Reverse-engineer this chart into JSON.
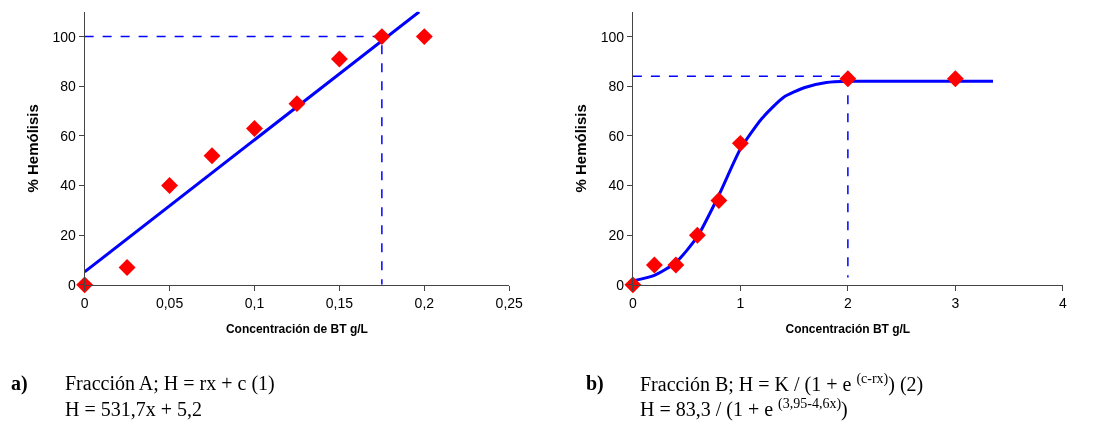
{
  "chart_data": [
    {
      "type": "scatter",
      "xlabel": "Concentración de BT g/L",
      "ylabel": "% Hemólisis",
      "xlim": [
        0,
        0.25
      ],
      "ylim": [
        0,
        110
      ],
      "xticks": [
        0,
        {
          "value": 0.05,
          "label": "0,05"
        },
        {
          "value": 0.1,
          "label": "0,1"
        },
        {
          "value": 0.15,
          "label": "0,15"
        },
        {
          "value": 0.2,
          "label": "0,2"
        },
        {
          "value": 0.25,
          "label": "0,25"
        }
      ],
      "yticks": [
        0,
        20,
        40,
        60,
        80,
        100
      ],
      "series": [
        {
          "type": "line",
          "line_style": "dashed",
          "color": "#0000ff",
          "marker": "none",
          "x": [
            0,
            0.175,
            0.175
          ],
          "values": [
            100,
            100,
            0
          ]
        },
        {
          "type": "line",
          "line_style": "solid",
          "color": "#0000ff",
          "marker": "none",
          "x": [
            0,
            0.197
          ],
          "values": [
            5.2,
            110
          ]
        },
        {
          "color": "#ff0000",
          "marker": "diamond",
          "x": [
            0,
            0.025,
            0.05,
            0.075,
            0.1,
            0.125,
            0.15,
            0.175,
            0.2
          ],
          "values": [
            0,
            7,
            40,
            52,
            63,
            73,
            91,
            100,
            100
          ]
        }
      ],
      "annotations": [
        "a)",
        "Fracción A; H = rx + c (1)",
        "H = 531,7x + 5,2"
      ]
    },
    {
      "type": "scatter",
      "xlabel": "Concentración BT g/L",
      "ylabel": "% Hemólisis",
      "xlim": [
        0,
        4
      ],
      "ylim": [
        0,
        110
      ],
      "xticks": [
        0,
        1,
        2,
        3,
        4
      ],
      "yticks": [
        0,
        20,
        40,
        60,
        80,
        100
      ],
      "series": [
        {
          "type": "line",
          "line_style": "dashed",
          "color": "#0000ff",
          "marker": "none",
          "x": [
            0,
            2,
            2
          ],
          "values": [
            84,
            84,
            3
          ]
        },
        {
          "type": "line",
          "line_style": "solid",
          "color": "#0000ff",
          "marker": "none",
          "x": [
            0,
            0.2,
            0.4,
            0.6,
            0.8,
            1.0,
            1.2,
            1.4,
            1.6,
            1.8,
            2.0,
            2.5,
            3.35
          ],
          "values": [
            1.6,
            3.8,
            9,
            19.4,
            36.1,
            54.7,
            67,
            75.5,
            79.5,
            81.5,
            82,
            82,
            82
          ]
        },
        {
          "color": "#ff0000",
          "marker": "diamond",
          "x": [
            0,
            0.2,
            0.4,
            0.6,
            0.8,
            1,
            2,
            3
          ],
          "values": [
            0,
            8,
            8,
            20,
            34,
            57,
            83,
            83
          ]
        }
      ],
      "annotations": [
        "b)",
        "Fracción B; H = K / (1 + e $^{(c-rx)}$) (2)",
        "H = 83,3 / (1 + e $^{(3,95-4,6x)}$)"
      ]
    }
  ]
}
